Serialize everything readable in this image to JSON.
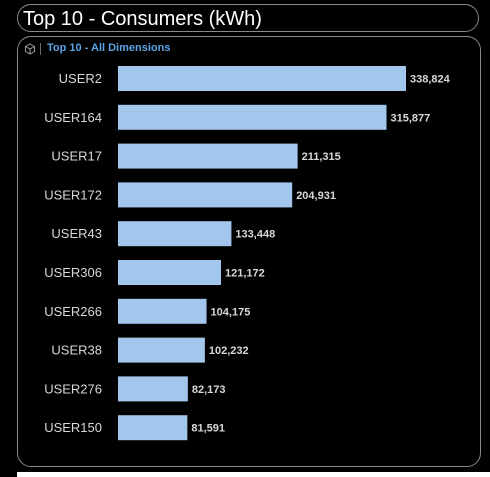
{
  "header": {
    "title": "Top 10 - Consumers (kWh)"
  },
  "panel": {
    "subtitle": "Top 10 - All Dimensions",
    "icon": "cube-icon"
  },
  "colors": {
    "bar": "#a3c6ec",
    "label": "#d8d8d8",
    "value_label": "#d8d8d8",
    "subtitle": "#5aa3e6"
  },
  "chart_data": {
    "type": "bar",
    "orientation": "horizontal",
    "title": "Top 10 - Consumers (kWh)",
    "subtitle": "Top 10 - All Dimensions",
    "categories": [
      "USER2",
      "USER164",
      "USER17",
      "USER172",
      "USER43",
      "USER306",
      "USER266",
      "USER38",
      "USER276",
      "USER150"
    ],
    "values": [
      338824,
      315877,
      211315,
      204931,
      133448,
      121172,
      104175,
      102232,
      82173,
      81591
    ],
    "value_labels": [
      "338,824",
      "315,877",
      "211,315",
      "204,931",
      "133,448",
      "121,172",
      "104,175",
      "102,232",
      "82,173",
      "81,591"
    ],
    "xlim": [
      0,
      338824
    ],
    "grid": false,
    "legend": "none"
  }
}
